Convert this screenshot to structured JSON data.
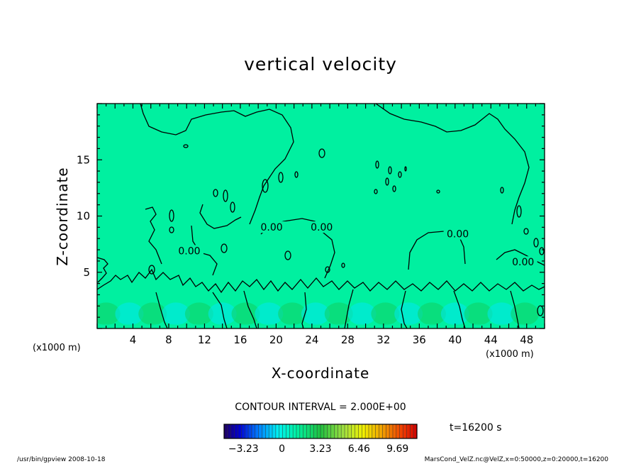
{
  "chart_data": {
    "type": "heatmap",
    "title": "vertical velocity",
    "xlabel": "X-coordinate",
    "ylabel": "Z-coordinate",
    "x_unit": "(x1000 m)",
    "y_unit": "(x1000 m)",
    "xlim": [
      0,
      50
    ],
    "ylim": [
      0,
      20
    ],
    "x_ticks": [
      4,
      8,
      12,
      16,
      20,
      24,
      28,
      32,
      36,
      40,
      44,
      48
    ],
    "y_ticks": [
      5,
      10,
      15
    ],
    "contour_interval": "CONTOUR INTERVAL = 2.000E+00",
    "contour_labels": [
      "0.00",
      "0.00",
      "0.00",
      "0.00",
      "0.00"
    ],
    "colorbar": {
      "ticks": [
        -3.23,
        0,
        3.23,
        6.46,
        9.69
      ],
      "tick_labels": [
        "−3.23",
        "0",
        "3.23",
        "6.46",
        "9.69"
      ],
      "min": -4.85,
      "max": 11.31,
      "colormap": "rainbow"
    },
    "background_value": 0
  },
  "time_label": "t=16200 s",
  "footer_left": "/usr/bin/gpview   2008-10-18",
  "footer_right": "MarsCond_VelZ.nc@VelZ,x=0:50000,z=0:20000,t=16200",
  "colors": {
    "field_zero": "#00f0a0",
    "updraft": "#10d060",
    "downdraft": "#00e8f0"
  }
}
